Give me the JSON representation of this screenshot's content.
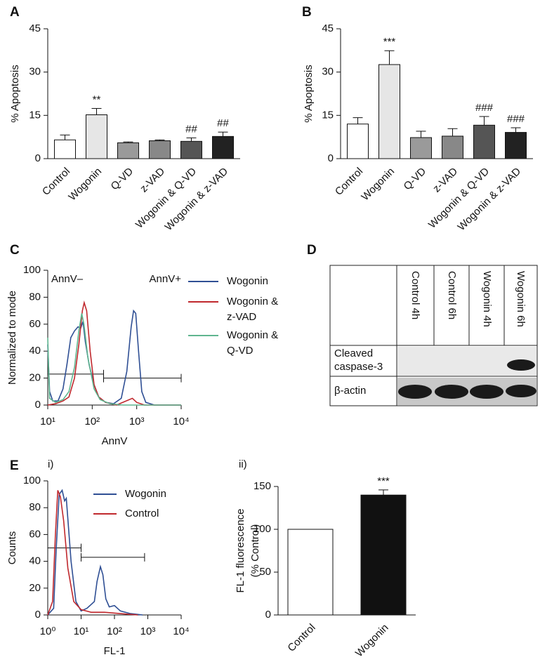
{
  "chart_data": [
    {
      "type": "bar",
      "panel": "A",
      "ylabel": [
        "% Apoptosis"
      ],
      "categories": [
        "Control",
        "Wogonin",
        "Q-VD",
        "z-VAD",
        "Wogonin & Q-VD",
        "Wogonin & z-VAD"
      ],
      "values": [
        6.5,
        15.2,
        5.5,
        6.2,
        6.0,
        7.7
      ],
      "errors": [
        1.7,
        2.2,
        0.3,
        0.3,
        1.2,
        1.5
      ],
      "annotations": [
        null,
        "**",
        null,
        null,
        "##",
        "##"
      ],
      "colors": [
        "#ffffff",
        "#e6e6e6",
        "#9a9a9a",
        "#888888",
        "#555555",
        "#222222"
      ],
      "ylim": [
        0,
        45
      ],
      "yticks": [
        0,
        15,
        30,
        45
      ]
    },
    {
      "type": "bar",
      "panel": "B",
      "ylabel": [
        "% Apoptosis"
      ],
      "categories": [
        "Control",
        "Wogonin",
        "Q-VD",
        "z-VAD",
        "Wogonin & Q-VD",
        "Wogonin & z-VAD"
      ],
      "values": [
        12.0,
        32.6,
        7.3,
        7.8,
        11.6,
        9.1
      ],
      "errors": [
        2.2,
        4.8,
        2.2,
        2.6,
        3.0,
        1.6
      ],
      "annotations": [
        null,
        "***",
        null,
        null,
        "###",
        "###"
      ],
      "colors": [
        "#ffffff",
        "#e6e6e6",
        "#9a9a9a",
        "#888888",
        "#555555",
        "#222222"
      ],
      "ylim": [
        0,
        45
      ],
      "yticks": [
        0,
        15,
        30,
        45
      ]
    },
    {
      "type": "line",
      "panel": "C",
      "ylabel": [
        "Normalized to mode"
      ],
      "xlabel": "AnnV",
      "xscale": "log",
      "annotations": [
        "AnnV–",
        "AnnV+"
      ],
      "xlim": [
        10,
        10000
      ],
      "ylim": [
        0,
        100
      ],
      "xticks": [
        {
          "value": 10,
          "label": "10¹"
        },
        {
          "value": 100,
          "label": "10²"
        },
        {
          "value": 1000,
          "label": "10³"
        },
        {
          "value": 10000,
          "label": "10⁴"
        }
      ],
      "yticks": [
        0,
        20,
        40,
        60,
        80,
        100
      ],
      "gates": [
        {
          "range": [
            10,
            180
          ],
          "y": 23
        },
        {
          "range": [
            180,
            10000
          ],
          "y": 20
        }
      ],
      "series": [
        {
          "name": "Wogonin",
          "color": "#2f4f94",
          "x": [
            10,
            11,
            13,
            17,
            22,
            27,
            33,
            40,
            48,
            55,
            62,
            70,
            85,
            110,
            140,
            200,
            300,
            450,
            600,
            750,
            850,
            950,
            1100,
            1300,
            1600,
            2500,
            10000
          ],
          "values": [
            45,
            10,
            3,
            3,
            12,
            30,
            50,
            55,
            58,
            57,
            62,
            47,
            30,
            15,
            6,
            2,
            1,
            5,
            25,
            58,
            70,
            68,
            40,
            10,
            2,
            0,
            0
          ]
        },
        {
          "name": "Wogonin & z-VAD",
          "color": "#c0282d",
          "x": [
            10,
            15,
            22,
            30,
            40,
            50,
            60,
            66,
            75,
            90,
            110,
            140,
            200,
            350,
            800,
            1000,
            1500,
            10000
          ],
          "values": [
            0,
            1,
            3,
            6,
            20,
            45,
            70,
            76,
            70,
            40,
            15,
            6,
            2,
            0,
            5,
            2,
            0,
            0
          ]
        },
        {
          "name": "Wogonin & Q-VD",
          "color": "#5fb58f",
          "x": [
            10,
            11,
            15,
            22,
            30,
            40,
            50,
            58,
            65,
            80,
            110,
            150,
            250,
            500,
            10000
          ],
          "values": [
            50,
            5,
            2,
            4,
            10,
            28,
            55,
            68,
            60,
            35,
            12,
            4,
            1,
            0,
            0
          ]
        }
      ]
    },
    {
      "type": "line",
      "panel": "E",
      "sublabel": "i)",
      "ylabel": [
        "Counts"
      ],
      "xlabel": "FL-1",
      "xscale": "log",
      "xlim": [
        1,
        10000
      ],
      "ylim": [
        0,
        100
      ],
      "xticks": [
        {
          "value": 1,
          "label": "10⁰"
        },
        {
          "value": 10,
          "label": "10¹"
        },
        {
          "value": 100,
          "label": "10²"
        },
        {
          "value": 1000,
          "label": "10³"
        },
        {
          "value": 10000,
          "label": "10⁴"
        }
      ],
      "yticks": [
        0,
        20,
        40,
        60,
        80,
        100
      ],
      "gates": [
        {
          "range": [
            1,
            10
          ],
          "y": 50
        },
        {
          "range": [
            10,
            800
          ],
          "y": 43
        }
      ],
      "series": [
        {
          "name": "Wogonin",
          "color": "#2f4f94",
          "x": [
            1,
            1.5,
            1.8,
            2.2,
            2.7,
            3.2,
            3.6,
            4.2,
            5,
            7,
            10,
            15,
            25,
            30,
            38,
            45,
            55,
            70,
            100,
            150,
            300,
            700
          ],
          "values": [
            0,
            5,
            50,
            90,
            93,
            85,
            87,
            65,
            40,
            10,
            3,
            5,
            10,
            25,
            36,
            30,
            12,
            6,
            7,
            3,
            1,
            0
          ]
        },
        {
          "name": "Control",
          "color": "#c0282d",
          "x": [
            1,
            1.4,
            1.7,
            2,
            2.4,
            3,
            4,
            6,
            10,
            20,
            50,
            150,
            500
          ],
          "values": [
            0,
            10,
            60,
            93,
            88,
            70,
            35,
            10,
            4,
            2,
            2,
            1,
            0
          ]
        }
      ]
    },
    {
      "type": "bar",
      "sublabel": "ii)",
      "ylabel": [
        "FL-1 fluorescence",
        "(% Control)"
      ],
      "categories": [
        "Control",
        "Wogonin"
      ],
      "values": [
        100,
        140
      ],
      "errors": [
        0,
        6
      ],
      "annotations": [
        null,
        "***"
      ],
      "colors": [
        "#ffffff",
        "#111111"
      ],
      "ylim": [
        0,
        150
      ],
      "yticks": [
        0,
        50,
        100,
        150
      ]
    }
  ],
  "blot": {
    "panel": "D",
    "columns": [
      "Control 4h",
      "Control 6h",
      "Wogonin 4h",
      "Wogonin 6h"
    ],
    "rows": [
      [
        "Cleaved",
        "caspase-3"
      ],
      [
        "β-actin"
      ]
    ]
  }
}
